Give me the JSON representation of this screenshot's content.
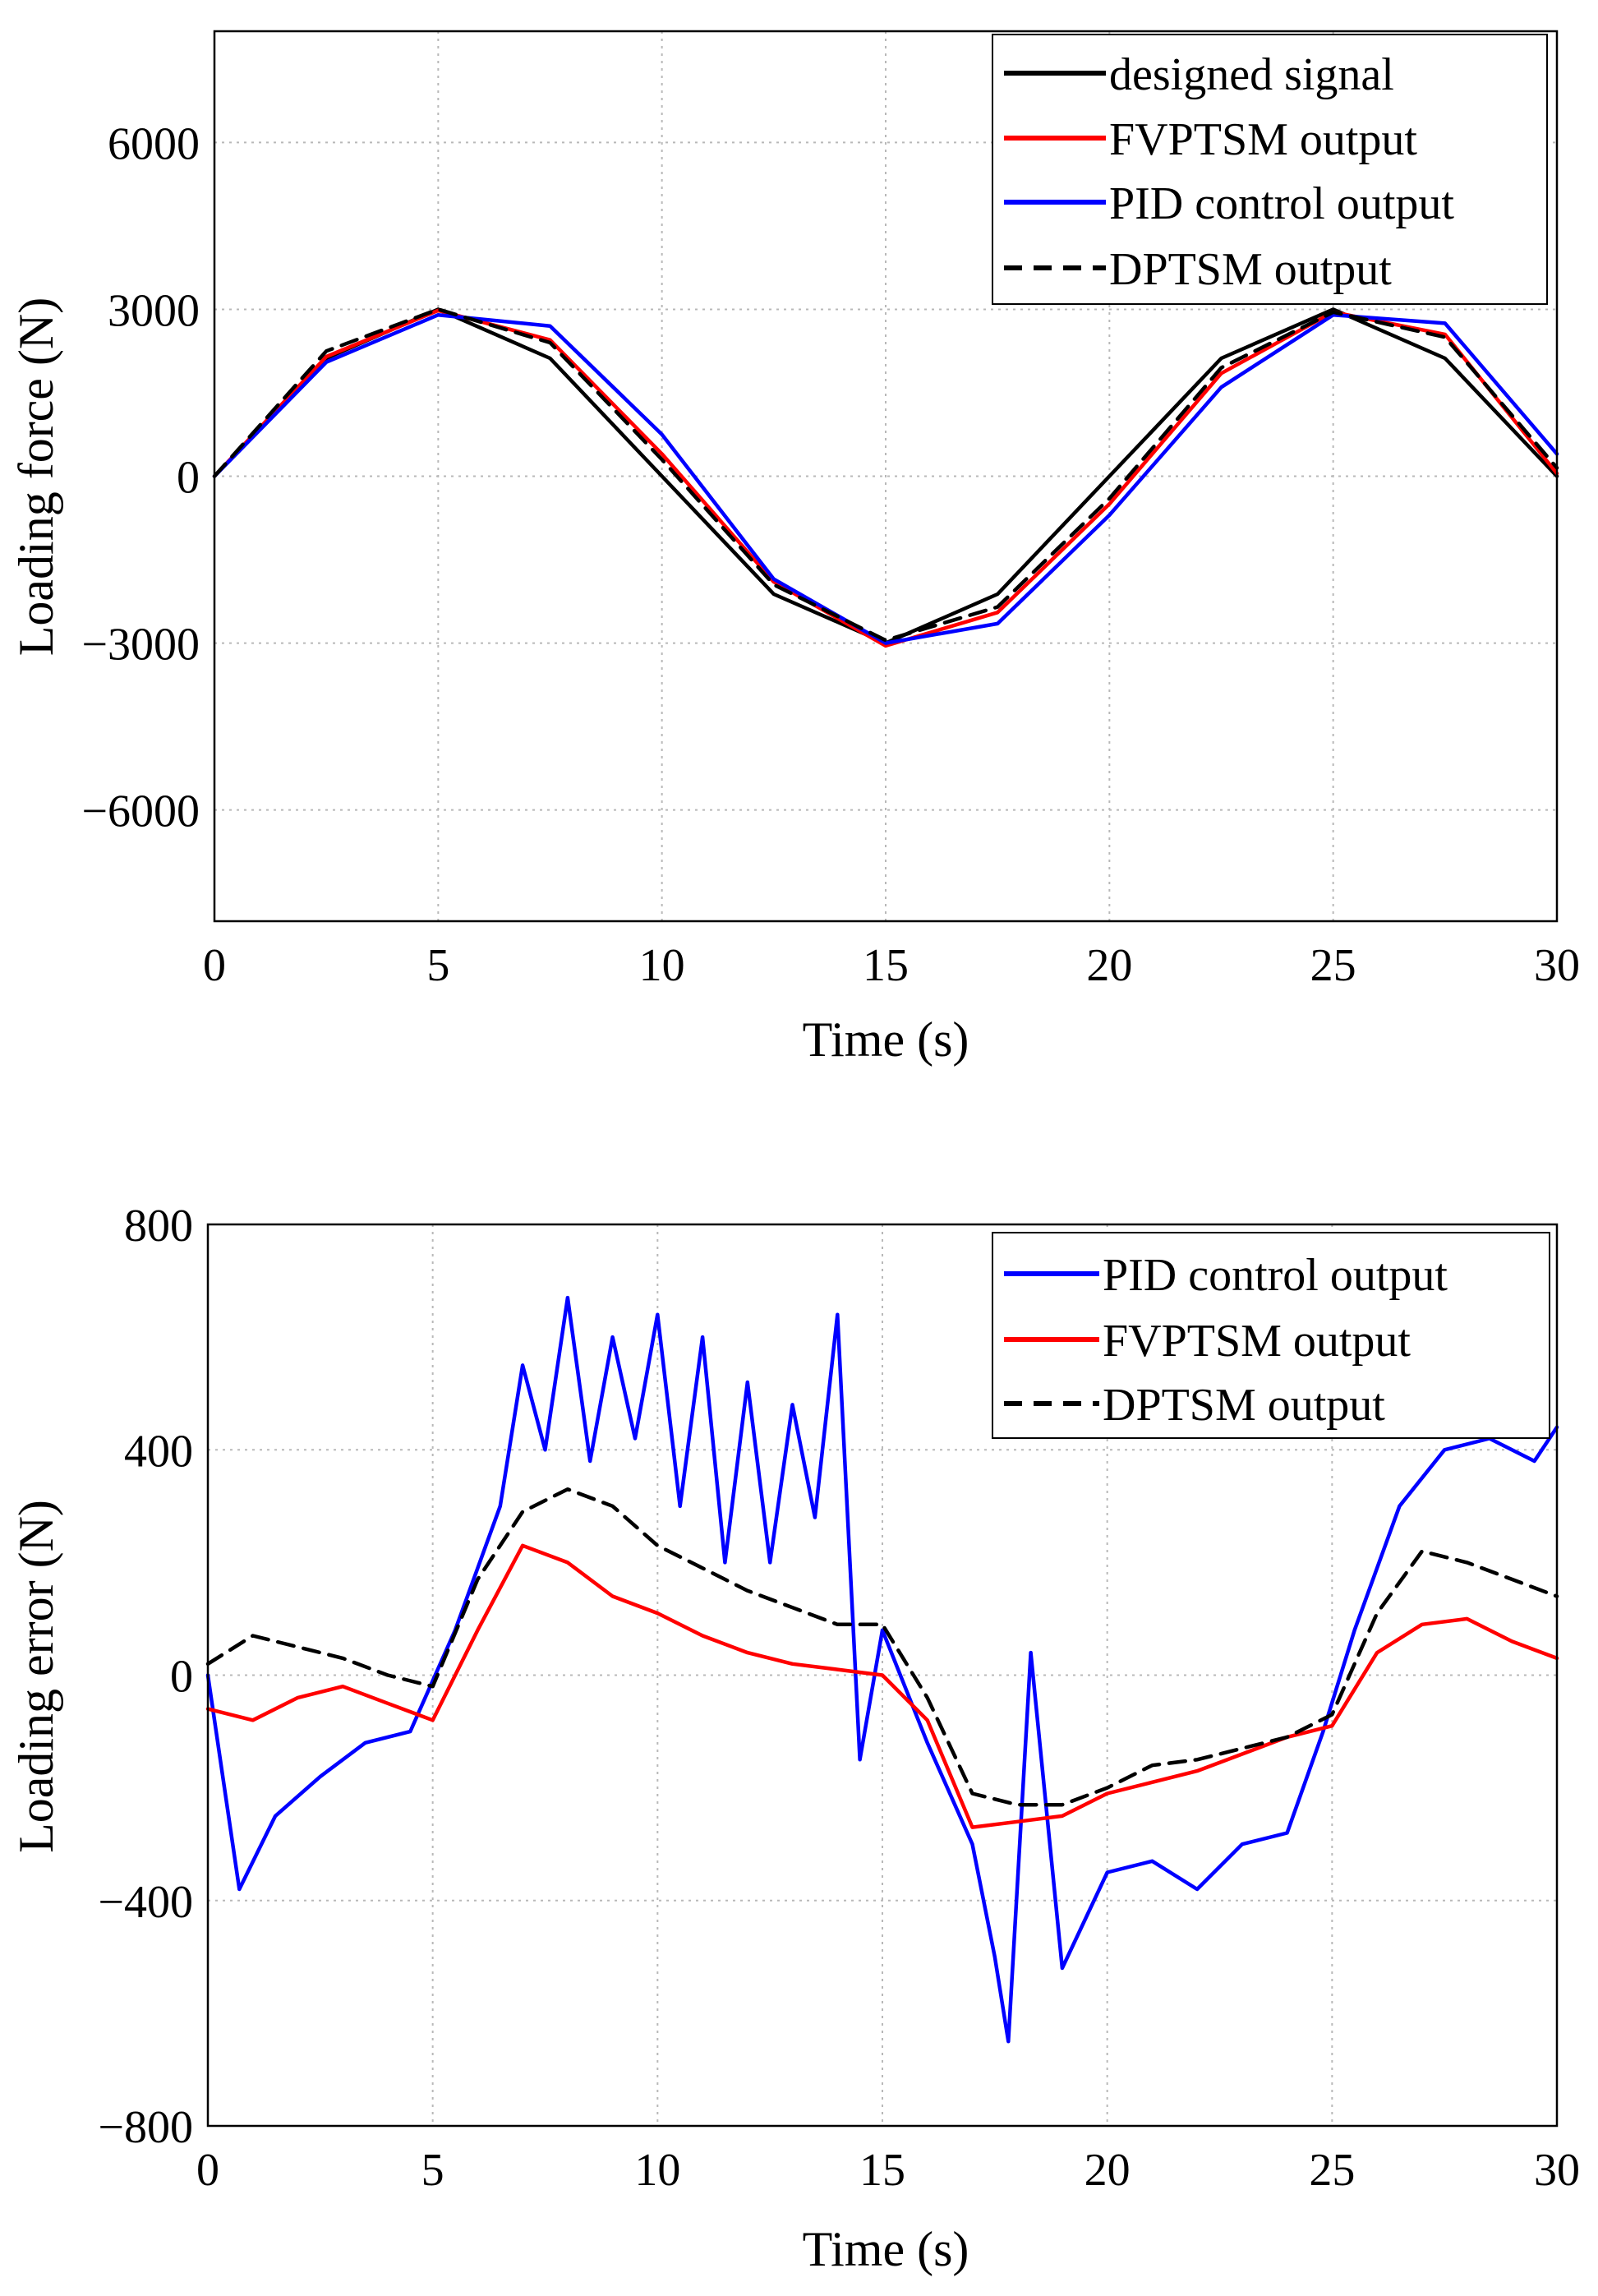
{
  "chart_data": [
    {
      "type": "line",
      "xlabel": "Time (s)",
      "ylabel": "Loading force (N)",
      "xlim": [
        0,
        30
      ],
      "ylim": [
        -8000,
        8000
      ],
      "xticks": [
        0,
        5,
        10,
        15,
        20,
        25,
        30
      ],
      "yticks": [
        6000,
        3000,
        0,
        -3000,
        -6000
      ],
      "xtick_labels": [
        "0",
        "5",
        "10",
        "15",
        "20",
        "25",
        "30"
      ],
      "ytick_labels": [
        "6000",
        "3000",
        "0",
        "−3000",
        "−6000"
      ],
      "grid": true,
      "legend_position": "top-right",
      "series": [
        {
          "name": "designed signal",
          "color": "#000000",
          "style": "solid",
          "x": [
            0,
            2.5,
            5,
            7.5,
            10,
            12.5,
            15,
            17.5,
            20,
            22.5,
            25,
            27.5,
            30
          ],
          "y": [
            0,
            2120,
            3000,
            2120,
            0,
            -2120,
            -3000,
            -2120,
            0,
            2120,
            3000,
            2120,
            0
          ]
        },
        {
          "name": "FVPTSM output",
          "color": "#ff0000",
          "style": "solid",
          "x": [
            0,
            2.5,
            5,
            7.5,
            10,
            12.5,
            15,
            17.5,
            20,
            22.5,
            25,
            27.5,
            30
          ],
          "y": [
            0,
            2150,
            2980,
            2450,
            400,
            -1900,
            -3050,
            -2450,
            -500,
            1850,
            2950,
            2550,
            50
          ]
        },
        {
          "name": "PID control output",
          "color": "#0000ff",
          "style": "solid",
          "x": [
            0,
            2.5,
            5,
            7.5,
            10,
            12.5,
            15,
            17.5,
            20,
            22.5,
            25,
            27.5,
            30
          ],
          "y": [
            0,
            2050,
            2900,
            2700,
            750,
            -1850,
            -3000,
            -2650,
            -700,
            1600,
            2900,
            2750,
            400
          ]
        },
        {
          "name": "DPTSM output",
          "color": "#000000",
          "style": "dashed",
          "x": [
            0,
            2.5,
            5,
            7.5,
            10,
            12.5,
            15,
            17.5,
            20,
            22.5,
            25,
            27.5,
            30
          ],
          "y": [
            0,
            2250,
            3000,
            2400,
            300,
            -1950,
            -2950,
            -2350,
            -400,
            1950,
            2950,
            2500,
            150
          ]
        }
      ]
    },
    {
      "type": "line",
      "xlabel": "Time (s)",
      "ylabel": "Loading error (N)",
      "xlim": [
        0,
        30
      ],
      "ylim": [
        -800,
        800
      ],
      "xticks": [
        0,
        5,
        10,
        15,
        20,
        25,
        30
      ],
      "yticks": [
        800,
        400,
        0,
        -400,
        -800
      ],
      "xtick_labels": [
        "0",
        "5",
        "10",
        "15",
        "20",
        "25",
        "30"
      ],
      "ytick_labels": [
        "800",
        "400",
        "0",
        "−400",
        "−800"
      ],
      "grid": true,
      "legend_position": "top-right",
      "series": [
        {
          "name": "PID control output",
          "color": "#0000ff",
          "style": "solid",
          "x": [
            0,
            0.7,
            1.5,
            2.5,
            3.5,
            4.5,
            5.5,
            6.5,
            7,
            7.5,
            8,
            8.5,
            9,
            9.5,
            10,
            10.5,
            11,
            11.5,
            12,
            12.5,
            13,
            13.5,
            14,
            14.5,
            15,
            16,
            17,
            17.5,
            17.8,
            18.3,
            19,
            20,
            21,
            22,
            23,
            24,
            24.8,
            25.5,
            26.5,
            27.5,
            28.5,
            29.5,
            30
          ],
          "y": [
            0,
            -380,
            -250,
            -180,
            -120,
            -100,
            80,
            300,
            550,
            400,
            670,
            380,
            600,
            420,
            640,
            300,
            600,
            200,
            520,
            200,
            480,
            280,
            640,
            -150,
            80,
            -120,
            -300,
            -500,
            -650,
            40,
            -520,
            -350,
            -330,
            -380,
            -300,
            -280,
            -100,
            80,
            300,
            400,
            420,
            380,
            440
          ]
        },
        {
          "name": "FVPTSM output",
          "color": "#ff0000",
          "style": "solid",
          "x": [
            0,
            1,
            2,
            3,
            4,
            5,
            6,
            7,
            8,
            9,
            10,
            11,
            12,
            13,
            14,
            15,
            16,
            17,
            18,
            19,
            20,
            21,
            22,
            23,
            24,
            25,
            26,
            27,
            28,
            29,
            30
          ],
          "y": [
            -60,
            -80,
            -40,
            -20,
            -50,
            -80,
            80,
            230,
            200,
            140,
            110,
            70,
            40,
            20,
            10,
            0,
            -80,
            -270,
            -260,
            -250,
            -210,
            -190,
            -170,
            -140,
            -110,
            -90,
            40,
            90,
            100,
            60,
            30
          ]
        },
        {
          "name": "DPTSM output",
          "color": "#000000",
          "style": "dashed",
          "x": [
            0,
            1,
            2,
            3,
            4,
            5,
            6,
            7,
            8,
            9,
            10,
            11,
            12,
            13,
            14,
            15,
            16,
            17,
            18,
            19,
            20,
            21,
            22,
            23,
            24,
            25,
            26,
            27,
            28,
            29,
            30
          ],
          "y": [
            20,
            70,
            50,
            30,
            0,
            -20,
            170,
            290,
            330,
            300,
            230,
            190,
            150,
            120,
            90,
            90,
            -40,
            -210,
            -230,
            -230,
            -200,
            -160,
            -150,
            -130,
            -110,
            -70,
            110,
            220,
            200,
            170,
            140
          ]
        }
      ]
    }
  ]
}
